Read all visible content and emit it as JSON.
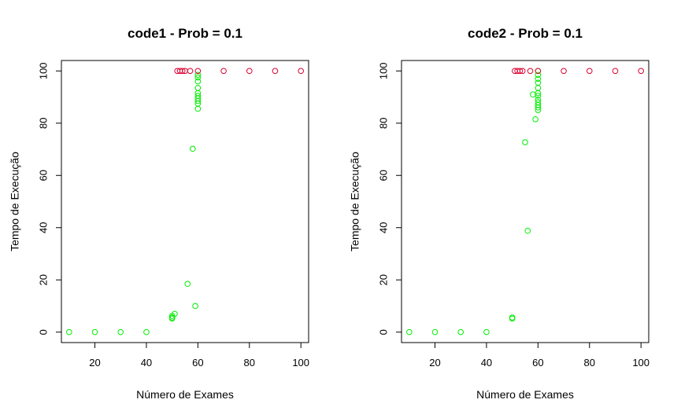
{
  "chart_data": [
    {
      "type": "scatter",
      "title": "code1 - Prob = 0.1",
      "xlabel": "Número de Exames",
      "ylabel": "Tempo de Execução",
      "xlim": [
        7,
        103
      ],
      "ylim": [
        -4,
        104
      ],
      "xticks": [
        20,
        40,
        60,
        80,
        100
      ],
      "yticks": [
        0,
        20,
        40,
        60,
        80,
        100
      ],
      "grid": false,
      "legend": "none",
      "series": [
        {
          "color": "#00ee00",
          "points": [
            [
              10,
              0
            ],
            [
              20,
              0
            ],
            [
              30,
              0
            ],
            [
              40,
              0
            ],
            [
              50,
              5.2
            ],
            [
              50,
              5.6
            ],
            [
              50,
              6.2
            ],
            [
              51,
              7
            ],
            [
              56,
              18.5
            ],
            [
              58,
              70.2
            ],
            [
              59,
              10
            ],
            [
              60,
              85.5
            ],
            [
              60,
              87.5
            ],
            [
              60,
              88.5
            ],
            [
              60,
              89.5
            ],
            [
              60,
              90.5
            ],
            [
              60,
              91.5
            ],
            [
              60,
              93.5
            ],
            [
              60,
              96
            ],
            [
              60,
              97.5
            ],
            [
              60,
              98.5
            ]
          ]
        },
        {
          "color": "#dd0030",
          "points": [
            [
              52,
              100
            ],
            [
              53,
              100
            ],
            [
              54,
              100
            ],
            [
              55,
              100
            ],
            [
              57,
              100
            ],
            [
              60,
              100
            ],
            [
              70,
              100
            ],
            [
              80,
              100
            ],
            [
              90,
              100
            ],
            [
              100,
              100
            ]
          ]
        }
      ]
    },
    {
      "type": "scatter",
      "title": "code2 - Prob = 0.1",
      "xlabel": "Número de Exames",
      "ylabel": "Tempo de Execução",
      "xlim": [
        7,
        103
      ],
      "ylim": [
        -4,
        104
      ],
      "xticks": [
        20,
        40,
        60,
        80,
        100
      ],
      "yticks": [
        0,
        20,
        40,
        60,
        80,
        100
      ],
      "grid": false,
      "legend": "none",
      "series": [
        {
          "color": "#00ee00",
          "points": [
            [
              10,
              0
            ],
            [
              20,
              0
            ],
            [
              30,
              0
            ],
            [
              40,
              0
            ],
            [
              50,
              5.2
            ],
            [
              50,
              5.6
            ],
            [
              55,
              72.7
            ],
            [
              56,
              38.8
            ],
            [
              58,
              91
            ],
            [
              59,
              81.5
            ],
            [
              60,
              85
            ],
            [
              60,
              86
            ],
            [
              60,
              87
            ],
            [
              60,
              88
            ],
            [
              60,
              89
            ],
            [
              60,
              90.5
            ],
            [
              60,
              91.5
            ],
            [
              60,
              93.5
            ],
            [
              60,
              95.5
            ],
            [
              60,
              97
            ],
            [
              60,
              98.5
            ],
            [
              60,
              100
            ]
          ]
        },
        {
          "color": "#dd0030",
          "points": [
            [
              51,
              100
            ],
            [
              52,
              100
            ],
            [
              53,
              100
            ],
            [
              54,
              100
            ],
            [
              57,
              100
            ],
            [
              60,
              100
            ],
            [
              70,
              100
            ],
            [
              80,
              100
            ],
            [
              90,
              100
            ],
            [
              100,
              100
            ]
          ]
        }
      ]
    }
  ]
}
